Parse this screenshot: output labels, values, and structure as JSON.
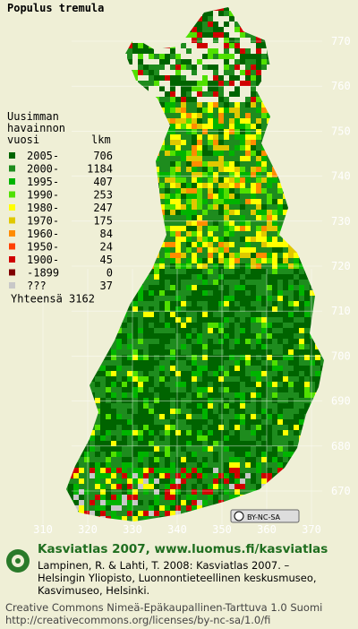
{
  "title": "Populus tremula",
  "legend": {
    "heading": [
      "Uusimman",
      "havainnon",
      "vuosi"
    ],
    "count_heading": "lkm",
    "rows": [
      {
        "label": "2005-",
        "count": 706,
        "color": "#006400"
      },
      {
        "label": "2000-",
        "count": 1184,
        "color": "#1e8c1e"
      },
      {
        "label": "1995-",
        "count": 407,
        "color": "#00b400"
      },
      {
        "label": "1990-",
        "count": 253,
        "color": "#50e000"
      },
      {
        "label": "1980-",
        "count": 247,
        "color": "#ffff00"
      },
      {
        "label": "1970-",
        "count": 175,
        "color": "#e0c800"
      },
      {
        "label": "1960-",
        "count": 84,
        "color": "#ff8c00"
      },
      {
        "label": "1950-",
        "count": 24,
        "color": "#ff4000"
      },
      {
        "label": "1900-",
        "count": 45,
        "color": "#d00000"
      },
      {
        "label": "-1899",
        "count": 0,
        "color": "#800000"
      },
      {
        "label": "???",
        "count": 37,
        "color": "#c8c8c8"
      }
    ],
    "total": "Yhteensä 3162"
  },
  "grid_labels": {
    "north": [
      "770",
      "760",
      "750",
      "740",
      "730",
      "720",
      "710",
      "700",
      "690",
      "680",
      "670"
    ],
    "east": [
      "310",
      "320",
      "330",
      "340",
      "350",
      "360",
      "370"
    ]
  },
  "license_badge": "BY-NC-SA",
  "footer": {
    "site": "Kasviatlas 2007, www.luomus.fi/kasviatlas",
    "citation": [
      "Lampinen, R. & Lahti, T. 2008: Kasviatlas 2007. –",
      "Helsingin Yliopisto, Luonnontieteellinen keskusmuseo,",
      "Kasvimuseo, Helsinki."
    ],
    "license": [
      "Creative Commons Nimeä-Epäkaupallinen-Tarttuva 1.0 Suomi",
      "http://creativecommons.org/licenses/by-nc-sa/1.0/fi"
    ]
  }
}
